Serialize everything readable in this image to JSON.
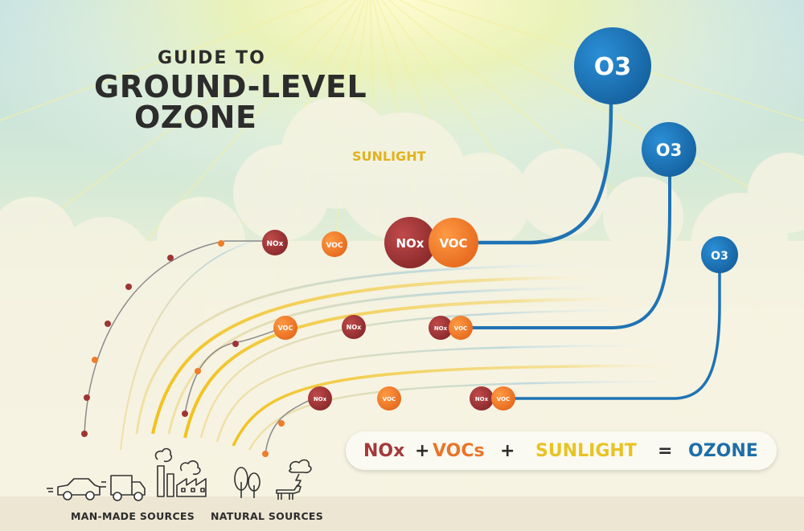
{
  "title": {
    "small": "GUIDE TO",
    "line1": "GROUND-LEVEL",
    "line2": "OZONE"
  },
  "sunlight_label": "SUNLIGHT",
  "molecules": {
    "nox": "NOx",
    "voc": "VOC",
    "ozone": "O3"
  },
  "equation": {
    "nox": "NOx",
    "plus1": "+",
    "vocs": "VOCs",
    "plus2": "+",
    "sunlight": "SUNLIGHT",
    "equals": "=",
    "ozone": "OZONE"
  },
  "sources": {
    "man_made": "MAN-MADE SOURCES",
    "natural": "NATURAL SOURCES"
  },
  "colors": {
    "nox": "#9e3535",
    "voc": "#ef7d2a",
    "ozone": "#1f73b4",
    "sunlight": "#e8c322",
    "text": "#2c2c2c"
  },
  "icons": [
    "car-icon",
    "truck-icon",
    "factory-icon",
    "trees-icon",
    "cow-icon",
    "storm-cloud-icon"
  ]
}
